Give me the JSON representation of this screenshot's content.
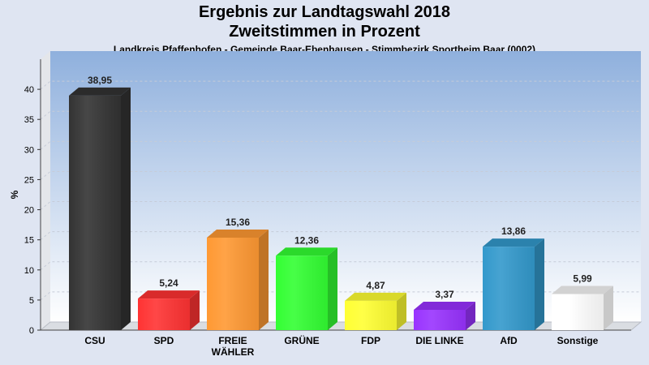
{
  "title": "Ergebnis zur Landtagswahl 2018",
  "subtitle": "Zweitstimmen in Prozent",
  "location": "Landkreis Pfaffenhofen - Gemeinde Baar-Ebenhausen - Stimmbezirk Sportheim Baar (0002)",
  "chart_data": {
    "type": "bar",
    "title": "Ergebnis zur Landtagswahl 2018",
    "subtitle": "Zweitstimmen in Prozent",
    "ylabel": "%",
    "xlabel": "",
    "ylim": [
      0,
      45
    ],
    "yticks": [
      0,
      5,
      10,
      15,
      20,
      25,
      30,
      35,
      40
    ],
    "grid": true,
    "categories": [
      "CSU",
      "SPD",
      "FREIE WÄHLER",
      "GRÜNE",
      "FDP",
      "DIE LINKE",
      "AfD",
      "Sonstige"
    ],
    "category_lines": [
      [
        "CSU"
      ],
      [
        "SPD"
      ],
      [
        "FREIE",
        "WÄHLER"
      ],
      [
        "GRÜNE"
      ],
      [
        "FDP"
      ],
      [
        "DIE LINKE"
      ],
      [
        "AfD"
      ],
      [
        "Sonstige"
      ]
    ],
    "values": [
      38.95,
      5.24,
      15.36,
      12.36,
      4.87,
      3.37,
      13.86,
      5.99
    ],
    "value_labels": [
      "38,95",
      "5,24",
      "15,36",
      "12,36",
      "4,87",
      "3,37",
      "13,86",
      "5,99"
    ],
    "colors": [
      "#333333",
      "#ff3333",
      "#ff9933",
      "#33ff33",
      "#ffff33",
      "#9933ff",
      "#3399cc",
      "#ffffff"
    ]
  }
}
